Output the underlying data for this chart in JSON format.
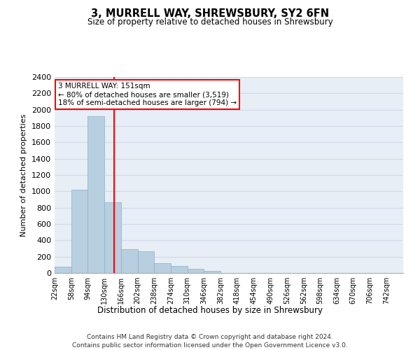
{
  "title": "3, MURRELL WAY, SHREWSBURY, SY2 6FN",
  "subtitle": "Size of property relative to detached houses in Shrewsbury",
  "xlabel": "Distribution of detached houses by size in Shrewsbury",
  "ylabel": "Number of detached properties",
  "footer_line1": "Contains HM Land Registry data © Crown copyright and database right 2024.",
  "footer_line2": "Contains public sector information licensed under the Open Government Licence v3.0.",
  "property_size": 151,
  "property_line": "3 MURRELL WAY: 151sqm",
  "annotation_line1": "← 80% of detached houses are smaller (3,519)",
  "annotation_line2": "18% of semi-detached houses are larger (794) →",
  "bin_labels": [
    "22sqm",
    "58sqm",
    "94sqm",
    "130sqm",
    "166sqm",
    "202sqm",
    "238sqm",
    "274sqm",
    "310sqm",
    "346sqm",
    "382sqm",
    "418sqm",
    "454sqm",
    "490sqm",
    "526sqm",
    "562sqm",
    "598sqm",
    "634sqm",
    "670sqm",
    "706sqm",
    "742sqm"
  ],
  "bin_edges": [
    22,
    58,
    94,
    130,
    166,
    202,
    238,
    274,
    310,
    346,
    382,
    418,
    454,
    490,
    526,
    562,
    598,
    634,
    670,
    706,
    742
  ],
  "bar_heights": [
    80,
    1020,
    1920,
    870,
    290,
    270,
    120,
    90,
    55,
    30,
    0,
    0,
    0,
    0,
    0,
    0,
    0,
    0,
    0,
    0
  ],
  "bar_color": "#b8cfe0",
  "bar_edge_color": "#8aafc8",
  "grid_color": "#d0d8e8",
  "background_color": "#e8eef5",
  "vline_color": "red",
  "ylim": [
    0,
    2400
  ],
  "yticks": [
    0,
    200,
    400,
    600,
    800,
    1000,
    1200,
    1400,
    1600,
    1800,
    2000,
    2200,
    2400
  ]
}
